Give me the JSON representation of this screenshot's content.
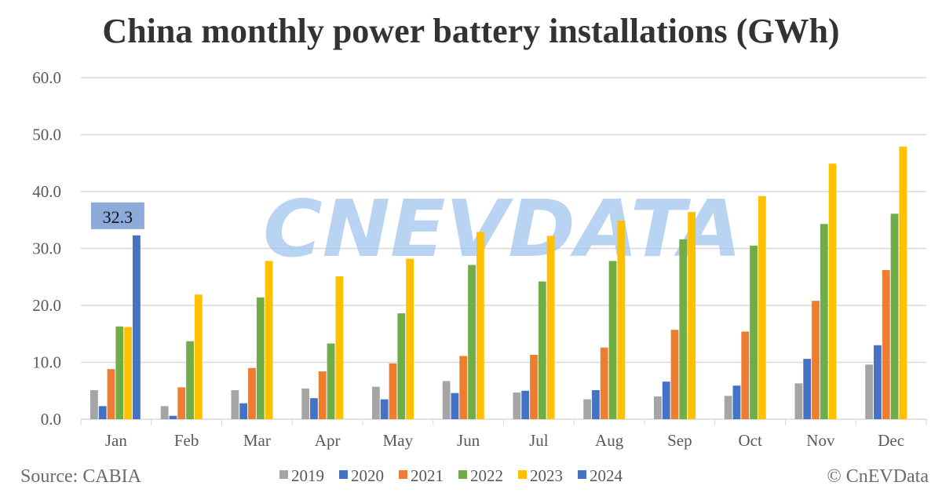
{
  "chart_data": {
    "type": "bar",
    "title": "China monthly power battery installations (GWh)",
    "xlabel": "",
    "ylabel": "",
    "ylim": [
      0,
      60
    ],
    "yticks": [
      "0.0",
      "10.0",
      "20.0",
      "30.0",
      "40.0",
      "50.0",
      "60.0"
    ],
    "grid": true,
    "legend_position": "bottom",
    "categories": [
      "Jan",
      "Feb",
      "Mar",
      "Apr",
      "May",
      "Jun",
      "Jul",
      "Aug",
      "Sep",
      "Oct",
      "Nov",
      "Dec"
    ],
    "series": [
      {
        "name": "2019",
        "color": "#a5a5a5",
        "values": [
          5.1,
          2.3,
          5.1,
          5.4,
          5.7,
          6.7,
          4.7,
          3.5,
          4.0,
          4.1,
          6.3,
          9.6
        ]
      },
      {
        "name": "2020",
        "color": "#4472c4",
        "values": [
          2.3,
          0.6,
          2.8,
          3.7,
          3.5,
          4.6,
          5.0,
          5.1,
          6.6,
          5.9,
          10.6,
          13.0
        ]
      },
      {
        "name": "2021",
        "color": "#ed7d31",
        "values": [
          8.8,
          5.6,
          9.0,
          8.4,
          9.8,
          11.1,
          11.3,
          12.6,
          15.7,
          15.4,
          20.8,
          26.2
        ]
      },
      {
        "name": "2022",
        "color": "#70ad47",
        "values": [
          16.3,
          13.7,
          21.4,
          13.3,
          18.6,
          27.1,
          24.2,
          27.8,
          31.6,
          30.5,
          34.3,
          36.1
        ]
      },
      {
        "name": "2023",
        "color": "#ffc000",
        "values": [
          16.2,
          21.9,
          27.8,
          25.1,
          28.2,
          32.9,
          32.2,
          34.9,
          36.4,
          39.2,
          44.9,
          47.9
        ]
      },
      {
        "name": "2024",
        "color": "#4472c4",
        "values": [
          32.3,
          null,
          null,
          null,
          null,
          null,
          null,
          null,
          null,
          null,
          null,
          null
        ]
      }
    ],
    "annotations": [
      {
        "category": "Jan",
        "series": "2024",
        "text": "32.3"
      }
    ]
  },
  "source": "Source: CABIA",
  "copyright": "© CnEVData",
  "watermark": "CNEVDATA"
}
